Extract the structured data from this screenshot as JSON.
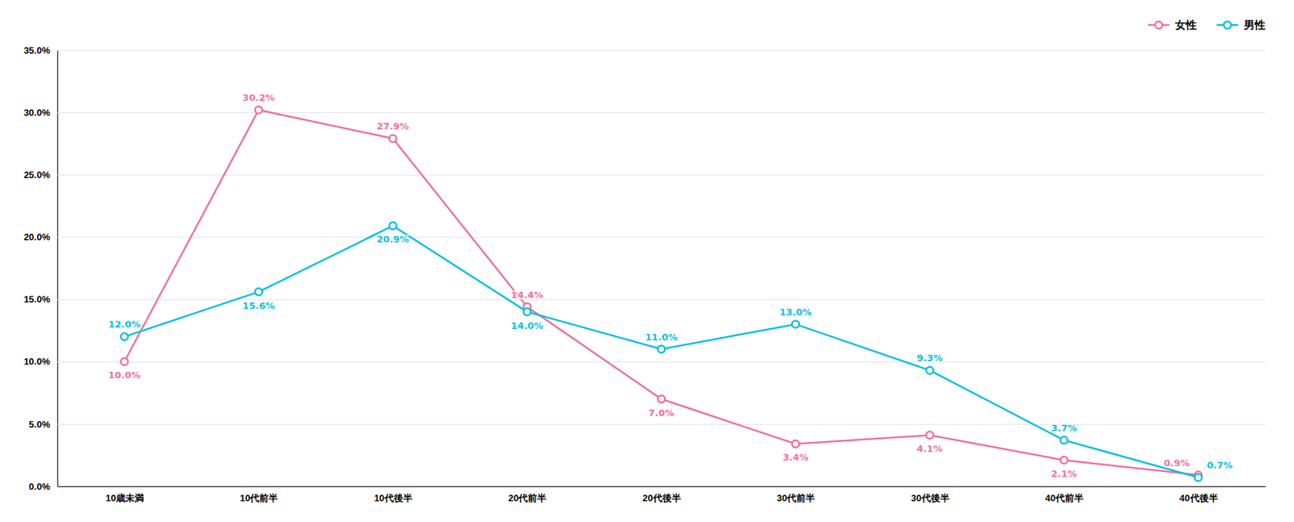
{
  "chart_data": {
    "type": "line",
    "categories": [
      "10歳未満",
      "10代前半",
      "10代後半",
      "20代前半",
      "20代後半",
      "30代前半",
      "30代後半",
      "40代前半",
      "40代後半"
    ],
    "series": [
      {
        "name": "女性",
        "color": "#F0709A",
        "values": [
          10.0,
          30.2,
          27.9,
          14.4,
          7.0,
          3.4,
          4.1,
          2.1,
          0.9
        ],
        "value_labels": [
          "10.0%",
          "30.2%",
          "27.9%",
          "14.4%",
          "7.0%",
          "3.4%",
          "4.1%",
          "2.1%",
          "0.9%"
        ]
      },
      {
        "name": "男性",
        "color": "#00BFDF",
        "values": [
          12.0,
          15.6,
          20.9,
          14.0,
          11.0,
          13.0,
          9.3,
          3.7,
          0.7
        ],
        "value_labels": [
          "12.0%",
          "15.6%",
          "20.9%",
          "14.0%",
          "11.0%",
          "13.0%",
          "9.3%",
          "3.7%",
          "0.7%"
        ]
      }
    ],
    "ylim": [
      0,
      35
    ],
    "yticks": [
      {
        "value": 0.0,
        "label": "0.0%"
      },
      {
        "value": 5.0,
        "label": "5.0%"
      },
      {
        "value": 10.0,
        "label": "10.0%"
      },
      {
        "value": 15.0,
        "label": "15.0%"
      },
      {
        "value": 20.0,
        "label": "20.0%"
      },
      {
        "value": 25.0,
        "label": "25.0%"
      },
      {
        "value": 30.0,
        "label": "30.0%"
      },
      {
        "value": 35.0,
        "label": "35.0%"
      }
    ],
    "grid": true,
    "legend": "upper right",
    "data_labels": true,
    "marker": "circle"
  }
}
